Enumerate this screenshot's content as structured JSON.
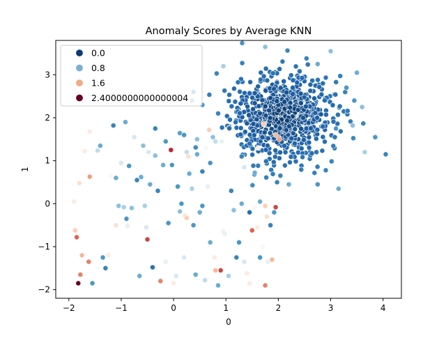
{
  "chart_data": {
    "type": "scatter",
    "title": "Anomaly Scores by Average KNN",
    "xlabel": "0",
    "ylabel": "1",
    "xlim": [
      -2.25,
      4.35
    ],
    "ylim": [
      -2.2,
      3.8
    ],
    "xticks": [
      -2,
      -1,
      0,
      1,
      2,
      3,
      4
    ],
    "yticks": [
      -2,
      -1,
      0,
      1,
      2,
      3
    ],
    "tick_labels_x": [
      "−2",
      "−1",
      "0",
      "1",
      "2",
      "3",
      "4"
    ],
    "tick_labels_y": [
      "−2",
      "−1",
      "0",
      "1",
      "2",
      "3"
    ],
    "grid": false,
    "legend_position": "top-left",
    "legend": [
      {
        "label": "0.0",
        "color": "#0b3b73"
      },
      {
        "label": "0.8",
        "color": "#7bafd4"
      },
      {
        "label": "1.6",
        "color": "#f4a988"
      },
      {
        "label": "2.4000000000000004",
        "color": "#67001f"
      }
    ],
    "colormap": "RdBu_r",
    "score_range": [
      0,
      2.4
    ],
    "marker_edge_color": "#ffffff",
    "cluster": {
      "center": [
        2.05,
        2.05
      ],
      "spread": 0.48,
      "count": 800
    },
    "points": [
      [
        -1.9,
        0.05,
        1.3
      ],
      [
        -1.88,
        -0.62,
        1.5
      ],
      [
        -1.85,
        -0.78,
        1.9
      ],
      [
        -1.82,
        -1.85,
        2.4
      ],
      [
        -1.78,
        -1.65,
        1.8
      ],
      [
        -1.75,
        -1.2,
        1.6
      ],
      [
        -1.8,
        0.48,
        1.4
      ],
      [
        -1.7,
        1.22,
        1.3
      ],
      [
        -1.6,
        1.68,
        1.3
      ],
      [
        -1.6,
        0.63,
        1.7
      ],
      [
        -1.62,
        -1.35,
        1.8
      ],
      [
        -1.55,
        -1.85,
        0.5
      ],
      [
        -1.45,
        1.24,
        0.9
      ],
      [
        -1.4,
        1.35,
        0.6
      ],
      [
        -1.35,
        -1.25,
        0.5
      ],
      [
        -1.3,
        -1.5,
        0.4
      ],
      [
        -1.25,
        -1.2,
        1.3
      ],
      [
        -1.2,
        0.65,
        1.2
      ],
      [
        -1.15,
        1.82,
        0.4
      ],
      [
        -1.1,
        -0.5,
        1.4
      ],
      [
        -1.1,
        0.6,
        0.6
      ],
      [
        -1.05,
        -0.05,
        0.7
      ],
      [
        -1.0,
        0.95,
        1.0
      ],
      [
        -0.95,
        -0.08,
        0.8
      ],
      [
        -0.92,
        1.9,
        0.6
      ],
      [
        -0.9,
        -0.35,
        0.5
      ],
      [
        -0.88,
        -0.52,
        1.1
      ],
      [
        -0.85,
        0.88,
        0.5
      ],
      [
        -0.8,
        -0.1,
        0.7
      ],
      [
        -0.75,
        1.55,
        1.0
      ],
      [
        -0.7,
        0.55,
        0.4
      ],
      [
        -0.65,
        -1.68,
        0.6
      ],
      [
        -0.62,
        0.62,
        0.6
      ],
      [
        -0.58,
        1.35,
        0.7
      ],
      [
        -0.55,
        -0.05,
        0.8
      ],
      [
        -0.52,
        -0.55,
        1.0
      ],
      [
        -0.5,
        -0.83,
        2.0
      ],
      [
        -0.48,
        1.2,
        1.0
      ],
      [
        -0.45,
        0.45,
        0.6
      ],
      [
        -0.4,
        -1.48,
        0.3
      ],
      [
        -0.35,
        1.12,
        0.7
      ],
      [
        -0.3,
        0.3,
        0.4
      ],
      [
        -0.25,
        -1.8,
        1.8
      ],
      [
        -0.2,
        0.9,
        0.6
      ],
      [
        -0.15,
        -1.35,
        1.1
      ],
      [
        -0.1,
        -0.45,
        0.5
      ],
      [
        -0.05,
        1.25,
        2.1
      ],
      [
        -0.03,
        0.9,
        0.5
      ],
      [
        0.0,
        -1.85,
        1.3
      ],
      [
        0.05,
        -1.68,
        1.0
      ],
      [
        0.08,
        0.4,
        0.5
      ],
      [
        0.12,
        -0.18,
        0.7
      ],
      [
        0.15,
        0.0,
        0.5
      ],
      [
        0.2,
        -1.25,
        1.0
      ],
      [
        0.22,
        -0.28,
        1.4
      ],
      [
        0.25,
        -0.33,
        1.5
      ],
      [
        0.28,
        1.1,
        1.4
      ],
      [
        0.3,
        0.7,
        0.6
      ],
      [
        0.35,
        0.35,
        0.8
      ],
      [
        0.38,
        -0.5,
        0.5
      ],
      [
        0.42,
        -1.65,
        0.6
      ],
      [
        0.45,
        1.5,
        0.7
      ],
      [
        0.5,
        -0.2,
        0.6
      ],
      [
        0.55,
        -0.05,
        0.5
      ],
      [
        0.6,
        -1.78,
        0.9
      ],
      [
        0.65,
        0.4,
        1.1
      ],
      [
        0.7,
        -0.9,
        0.6
      ],
      [
        0.75,
        1.55,
        0.7
      ],
      [
        0.78,
        -1.25,
        1.3
      ],
      [
        0.8,
        -1.55,
        1.6
      ],
      [
        0.85,
        -1.9,
        0.6
      ],
      [
        0.9,
        -1.55,
        2.0
      ],
      [
        0.95,
        -0.65,
        1.3
      ],
      [
        0.98,
        -0.7,
        1.1
      ],
      [
        1.05,
        -1.68,
        0.8
      ],
      [
        1.1,
        0.3,
        0.4
      ],
      [
        1.15,
        -0.15,
        0.7
      ],
      [
        1.2,
        -1.25,
        0.4
      ],
      [
        1.25,
        -0.9,
        0.5
      ],
      [
        1.3,
        0.0,
        0.6
      ],
      [
        1.35,
        -1.35,
        1.0
      ],
      [
        1.4,
        -1.62,
        1.3
      ],
      [
        1.45,
        -1.85,
        1.3
      ],
      [
        1.5,
        -0.62,
        1.9
      ],
      [
        1.55,
        -0.1,
        1.2
      ],
      [
        1.6,
        -0.55,
        1.3
      ],
      [
        1.65,
        -1.25,
        0.5
      ],
      [
        1.7,
        -1.0,
        1.2
      ],
      [
        1.75,
        -1.9,
        1.8
      ],
      [
        1.78,
        -0.3,
        1.4
      ],
      [
        1.8,
        -1.35,
        1.1
      ],
      [
        1.85,
        -0.5,
        0.4
      ],
      [
        1.88,
        -1.3,
        1.6
      ],
      [
        1.92,
        -0.2,
        0.5
      ],
      [
        1.95,
        -0.08,
        2.0
      ],
      [
        1.75,
        -0.05,
        1.5
      ],
      [
        1.45,
        -0.2,
        0.3
      ],
      [
        1.65,
        0.05,
        0.6
      ],
      [
        0.55,
        0.75,
        0.4
      ],
      [
        0.7,
        0.95,
        0.5
      ],
      [
        0.25,
        1.2,
        0.9
      ],
      [
        0.45,
        1.15,
        0.6
      ],
      [
        0.62,
        1.3,
        1.2
      ],
      [
        0.8,
        1.45,
        0.9
      ],
      [
        0.68,
        1.72,
        1.5
      ],
      [
        0.92,
        1.45,
        1.1
      ],
      [
        1.35,
        0.85,
        1.0
      ],
      [
        1.55,
        0.72,
        0.6
      ],
      [
        1.62,
        1.3,
        1.3
      ],
      [
        1.72,
        1.85,
        1.5
      ],
      [
        1.95,
        1.6,
        1.6
      ],
      [
        2.02,
        1.5,
        1.7
      ],
      [
        1.3,
        1.1,
        0.4
      ],
      [
        1.45,
        1.4,
        0.3
      ],
      [
        0.85,
        2.1,
        0.4
      ],
      [
        0.55,
        2.3,
        0.5
      ],
      [
        0.35,
        2.4,
        0.6
      ],
      [
        0.2,
        1.6,
        0.5
      ],
      [
        -0.35,
        1.75,
        0.4
      ],
      [
        -0.15,
        1.45,
        0.5
      ],
      [
        3.0,
        3.55,
        0.7
      ],
      [
        3.15,
        0.35,
        0.6
      ],
      [
        3.6,
        2.25,
        0.7
      ],
      [
        3.65,
        1.2,
        0.8
      ],
      [
        3.85,
        1.55,
        0.5
      ],
      [
        4.05,
        1.15,
        0.4
      ],
      [
        3.45,
        2.4,
        0.5
      ],
      [
        3.5,
        3.05,
        0.6
      ],
      [
        2.75,
        0.45,
        0.5
      ],
      [
        2.2,
        0.45,
        0.6
      ],
      [
        1.75,
        3.65,
        0.7
      ],
      [
        0.95,
        3.2,
        0.8
      ],
      [
        3.42,
        1.82,
        0.7
      ],
      [
        3.3,
        2.7,
        0.5
      ],
      [
        2.75,
        3.25,
        0.6
      ],
      [
        3.1,
        1.75,
        0.5
      ]
    ]
  }
}
